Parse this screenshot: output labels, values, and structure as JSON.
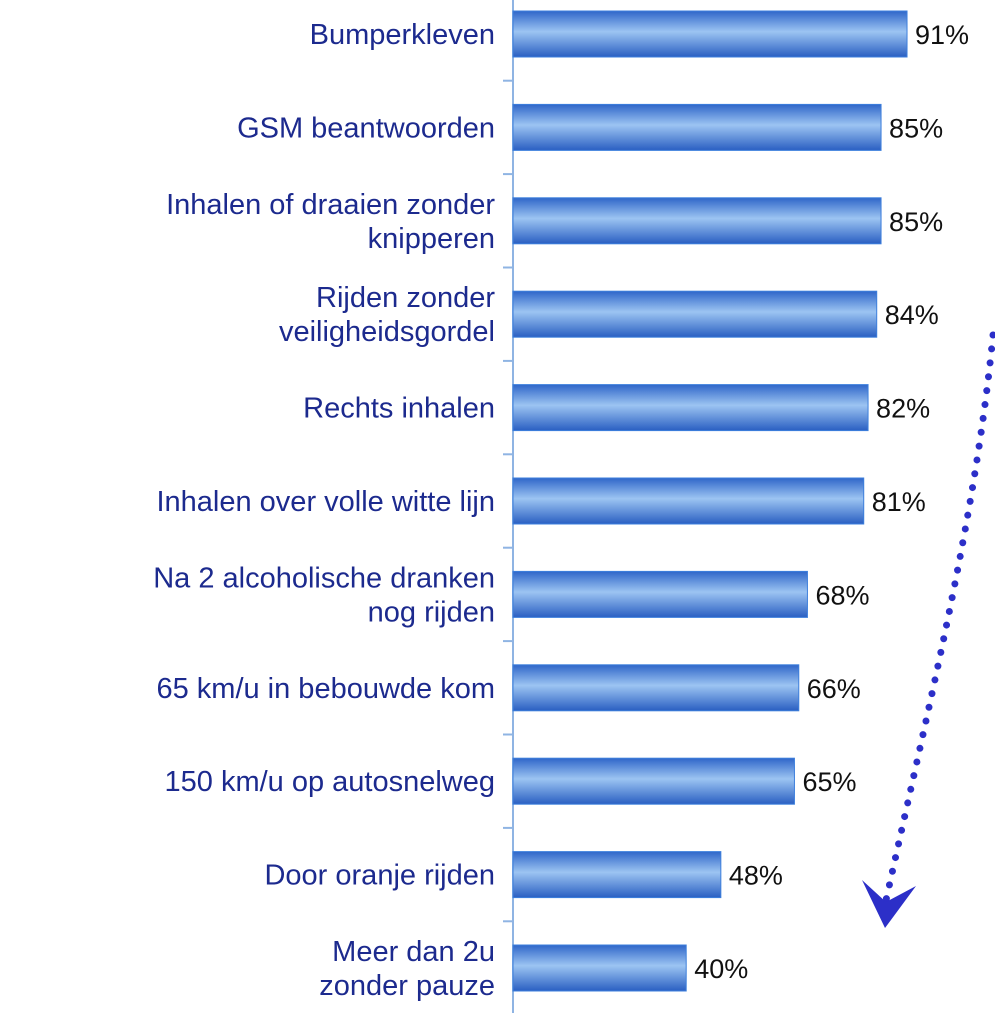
{
  "chart_data": {
    "type": "bar",
    "orientation": "horizontal",
    "categories": [
      "Bumperkleven",
      "GSM beantwoorden",
      "Inhalen of draaien zonder\nknipperen",
      "Rijden zonder\nveiligheidsgordel",
      "Rechts inhalen",
      "Inhalen over volle witte lijn",
      "Na 2 alcoholische dranken\nnog rijden",
      "65 km/u in bebouwde kom",
      "150 km/u op autosnelweg",
      "Door oranje rijden",
      "Meer dan 2u\nzonder pauze"
    ],
    "values": [
      91,
      85,
      85,
      84,
      82,
      81,
      68,
      66,
      65,
      48,
      40
    ],
    "value_labels": [
      "91%",
      "85%",
      "85%",
      "84%",
      "82%",
      "81%",
      "68%",
      "66%",
      "65%",
      "48%",
      "40%"
    ],
    "color": "#3d7fdc",
    "xlim": [
      0,
      100
    ]
  }
}
